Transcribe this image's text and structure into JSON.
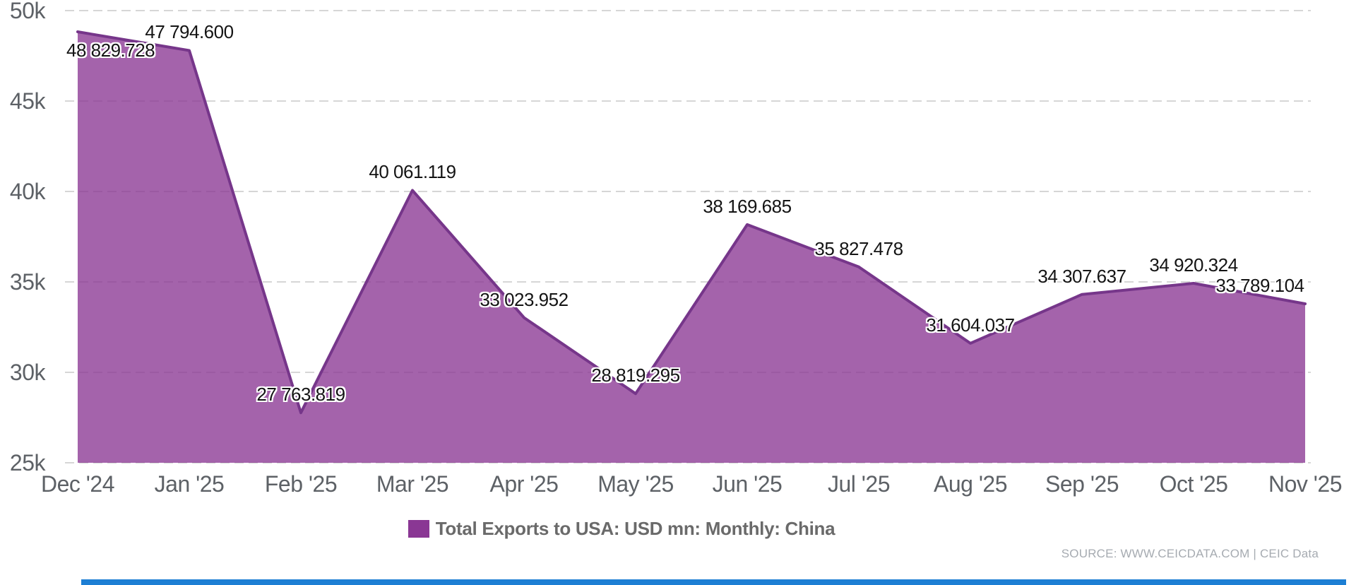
{
  "chart_data": {
    "type": "area",
    "title": "Total Exports to USA: USD mn: Monthly: China",
    "categories": [
      "Dec '24",
      "Jan '25",
      "Feb '25",
      "Mar '25",
      "Apr '25",
      "May '25",
      "Jun '25",
      "Jul '25",
      "Aug '25",
      "Sep '25",
      "Oct '25",
      "Nov '25"
    ],
    "series": [
      {
        "name": "Total Exports to USA: USD mn: Monthly: China",
        "values": [
          48829.728,
          47794.6,
          27763.819,
          40061.119,
          33023.952,
          28819.295,
          38169.685,
          35827.478,
          31604.037,
          34307.637,
          34920.324,
          33789.104
        ],
        "point_labels": [
          "48 829.728",
          "47 794.600",
          "27 763.819",
          "40 061.119",
          "33 023.952",
          "28 819.295",
          "38 169.685",
          "35 827.478",
          "31 604.037",
          "34 307.637",
          "34 920.324",
          "33 789.104"
        ]
      }
    ],
    "xlabel": "",
    "ylabel": "",
    "ylim": [
      25000,
      50000
    ],
    "ytick_values": [
      50000,
      45000,
      40000,
      35000,
      30000,
      25000
    ],
    "ytick_labels": [
      "50k",
      "45k",
      "40k",
      "35k",
      "30k",
      "25k"
    ],
    "grid": "horizontal-dashed",
    "legend_position": "bottom-center",
    "colors": {
      "area_fill": "#8A3794",
      "area_fill_opacity": 0.78,
      "line_stroke": "#76368A",
      "gridline": "#d6d6d6",
      "axis_text": "#5d6166",
      "data_label_text": "#141414"
    }
  },
  "legend": {
    "swatch_color": "#8A3794",
    "label": "Total Exports to USA: USD mn: Monthly: China"
  },
  "footer": {
    "source": "SOURCE: WWW.CEICDATA.COM | CEIC Data"
  },
  "bottom_bar": {
    "color": "#1d7fd4"
  }
}
